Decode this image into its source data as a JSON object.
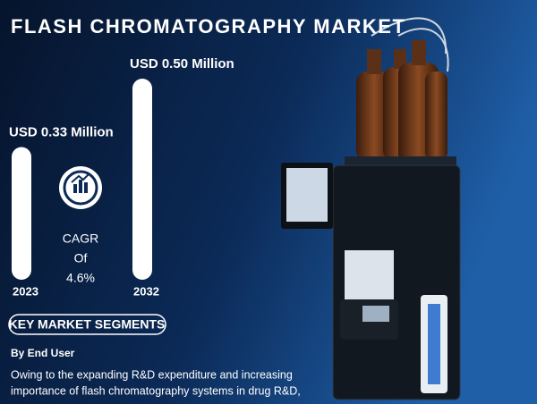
{
  "chart_data": {
    "type": "bar",
    "title": "FLASH CHROMATOGRAPHY MARKET",
    "categories": [
      "2023",
      "2032"
    ],
    "values": [
      0.33,
      0.5
    ],
    "value_labels": [
      "USD 0.33 Million",
      "USD 0.50 Million"
    ],
    "color": "#ffffff"
  },
  "cagr": {
    "label": "CAGR",
    "connector": "Of",
    "value": "4.6%"
  },
  "segments": {
    "heading": "KEY MARKET SEGMENTS",
    "subheading": "By End User",
    "text": [
      "Owing to the expanding R&D expenditure and increasing",
      "importance of flash chromatography systems in drug R&D,"
    ]
  }
}
